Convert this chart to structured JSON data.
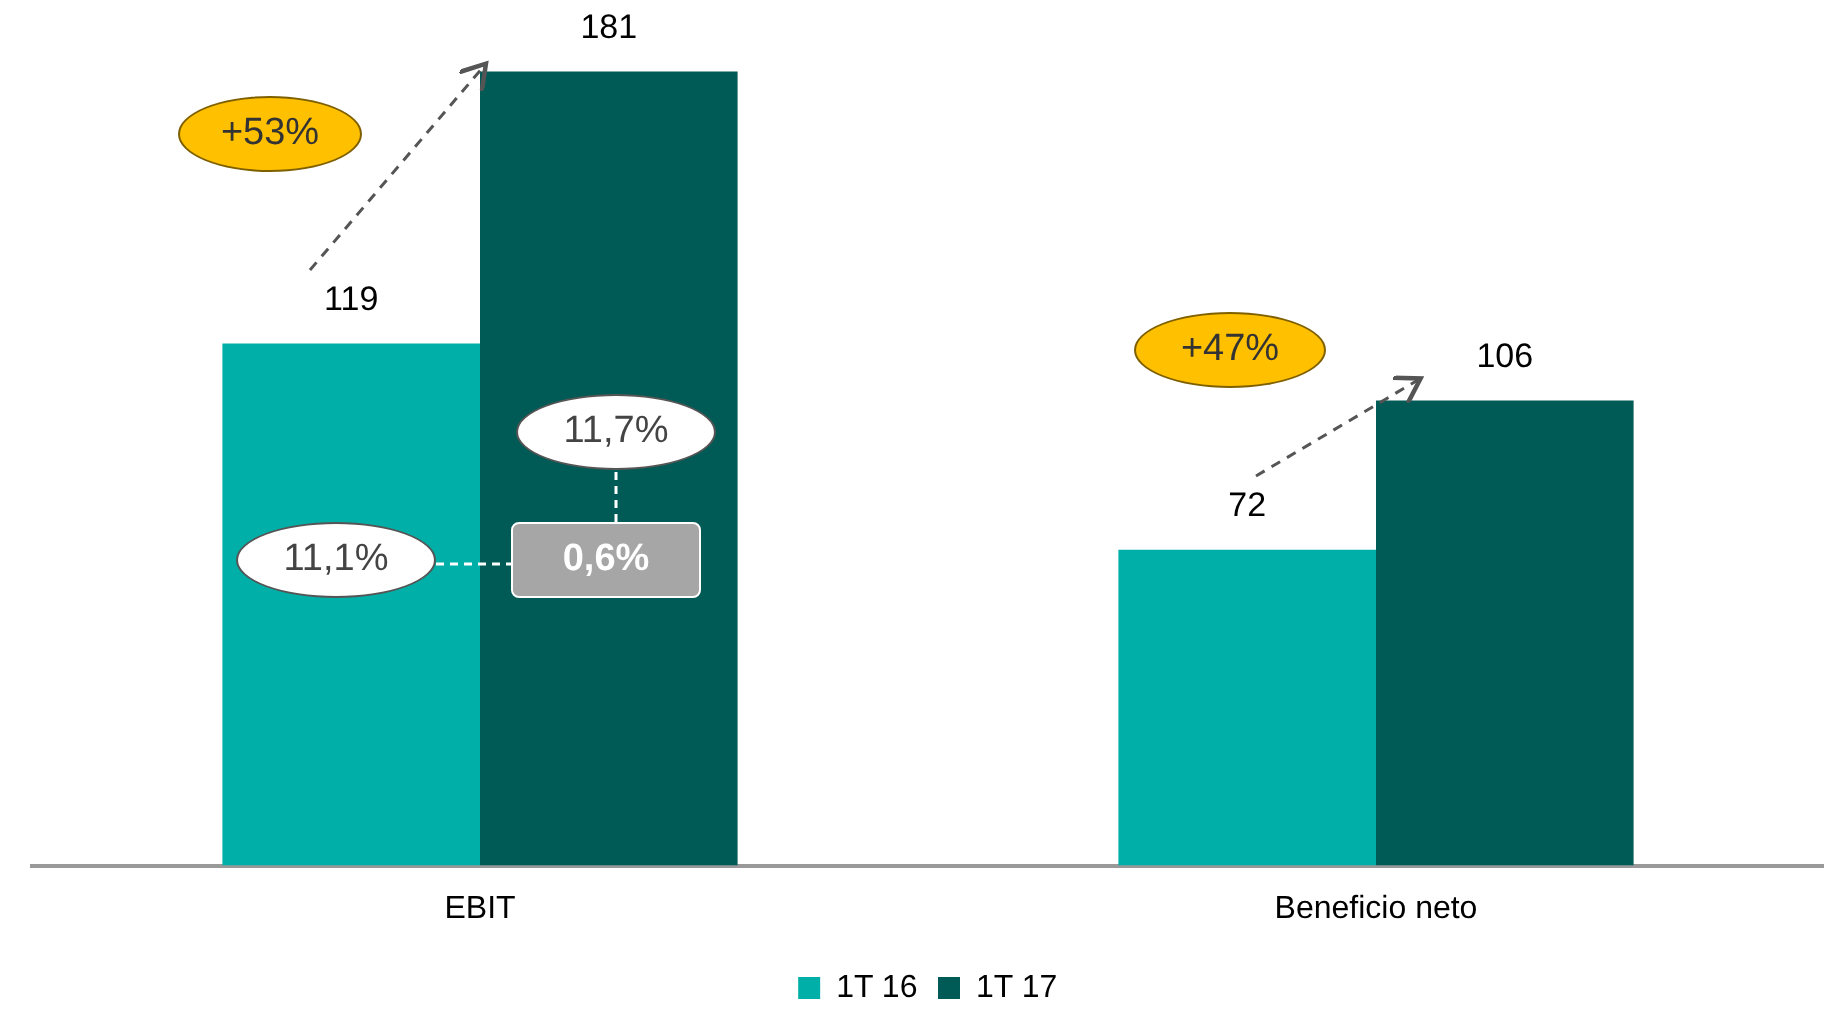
{
  "chart_data": {
    "type": "bar",
    "categories": [
      "EBIT",
      "Beneficio neto"
    ],
    "series": [
      {
        "name": "1T 16",
        "color": "#00b0a8",
        "values": [
          119,
          72
        ]
      },
      {
        "name": "1T 17",
        "color": "#005a55",
        "values": [
          181,
          106
        ]
      }
    ],
    "data_labels": true,
    "legend": "bottom",
    "annotations": [
      "+53%",
      "+47%",
      "11,1%",
      "11,7%",
      "0,6%"
    ]
  }
}
